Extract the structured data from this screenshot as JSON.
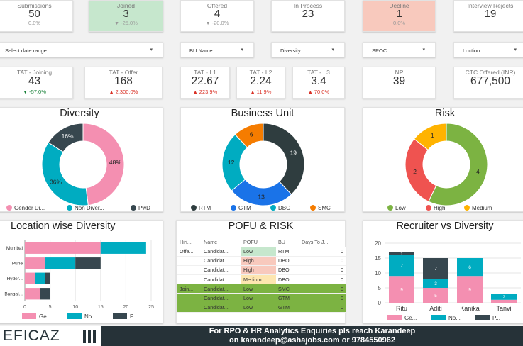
{
  "kpis_top": [
    {
      "label": "Submissions",
      "value": "50",
      "change": "0.0%",
      "trend": "none",
      "bg": "#ffffff"
    },
    {
      "label": "Joined",
      "value": "3",
      "change": "-25.0%",
      "trend": "down",
      "bg": "#c6e7cd"
    },
    {
      "label": "Offered",
      "value": "4",
      "change": "-20.0%",
      "trend": "down",
      "bg": "#ffffff"
    },
    {
      "label": "In Process",
      "value": "23",
      "change": "",
      "trend": "none",
      "bg": "#ffffff"
    },
    {
      "label": "Decline",
      "value": "1",
      "change": "0.0%",
      "trend": "none",
      "bg": "#f8c9bd"
    },
    {
      "label": "Interview Rejects",
      "value": "19",
      "change": "",
      "trend": "none",
      "bg": "#ffffff"
    }
  ],
  "filters": [
    {
      "label": "Select date range",
      "icon": "chevron-down-icon"
    },
    {
      "label": "BU Name",
      "icon": "chevron-down-icon"
    },
    {
      "label": "Diversity",
      "icon": "chevron-down-icon"
    },
    {
      "label": "SPOC",
      "icon": "chevron-down-icon"
    },
    {
      "label": "Loction",
      "icon": "chevron-down-icon"
    }
  ],
  "kpis_mid": [
    {
      "label": "TAT - Joining",
      "value": "43",
      "change": "-57.0%",
      "trend": "down-good"
    },
    {
      "label": "TAT - Offer",
      "value": "168",
      "change": "2,300.0%",
      "trend": "up-bad"
    },
    {
      "label": "TAT - L1",
      "value": "22.67",
      "change": "223.9%",
      "trend": "up-bad"
    },
    {
      "label": "TAT - L2",
      "value": "2.24",
      "change": "11.9%",
      "trend": "up-bad"
    },
    {
      "label": "TAT - L3",
      "value": "3.4",
      "change": "70.0%",
      "trend": "up-bad"
    },
    {
      "label": "NP",
      "value": "39",
      "change": "",
      "trend": "none"
    },
    {
      "label": "CTC Offered (INR)",
      "value": "677,500",
      "change": "",
      "trend": "none"
    }
  ],
  "colors": {
    "pink": "#f48fb1",
    "teal": "#00acc1",
    "dark": "#37474f",
    "blue": "#1a73e8",
    "orange": "#f57c00",
    "green": "#7cb342",
    "red": "#ef5350",
    "amber": "#ffb300",
    "dark_slate": "#2f3d3f",
    "footer": "#263238"
  },
  "chart_data": [
    {
      "type": "pie",
      "title": "Diversity",
      "categories": [
        "Gender Di...",
        "Non Diver...",
        "PwD"
      ],
      "values": [
        48,
        36,
        16
      ],
      "labels": [
        "48%",
        "36%",
        "16%"
      ],
      "colors": [
        "#f48fb1",
        "#00acc1",
        "#37474f"
      ],
      "legend": "bottom"
    },
    {
      "type": "pie",
      "title": "Business Unit",
      "categories": [
        "RTM",
        "GTM",
        "DBO",
        "SMC"
      ],
      "values": [
        19,
        13,
        12,
        6
      ],
      "labels": [
        "19",
        "13",
        "12",
        "6"
      ],
      "colors": [
        "#2f3d3f",
        "#1a73e8",
        "#00acc1",
        "#f57c00"
      ],
      "legend": "bottom"
    },
    {
      "type": "pie",
      "title": "Risk",
      "categories": [
        "Low",
        "High",
        "Medium"
      ],
      "values": [
        4,
        2,
        1
      ],
      "labels": [
        "4",
        "2",
        "1"
      ],
      "colors": [
        "#7cb342",
        "#ef5350",
        "#ffb300"
      ],
      "legend": "bottom"
    },
    {
      "type": "bar",
      "orientation": "horizontal",
      "stacked": true,
      "title": "Location wise Diversity",
      "categories": [
        "Mumbai",
        "Pune",
        "Hyder...",
        "Bangal..."
      ],
      "series": [
        {
          "name": "Ge...",
          "values": [
            15,
            4,
            2,
            3
          ],
          "color": "#f48fb1"
        },
        {
          "name": "No...",
          "values": [
            9,
            6,
            2,
            0
          ],
          "color": "#00acc1"
        },
        {
          "name": "P...",
          "values": [
            0,
            5,
            1,
            2
          ],
          "color": "#37474f"
        }
      ],
      "xlim": [
        0,
        25
      ],
      "xticks": [
        "0",
        "5",
        "10",
        "15",
        "20",
        "25"
      ],
      "legend": "bottom"
    },
    {
      "type": "bar",
      "stacked": true,
      "title": "Recruiter vs Diversity",
      "categories": [
        "Ritu",
        "Aditi",
        "Kanika",
        "Tanvi"
      ],
      "series": [
        {
          "name": "Ge...",
          "values": [
            9,
            5,
            9,
            1
          ],
          "color": "#f48fb1"
        },
        {
          "name": "No...",
          "values": [
            7,
            3,
            6,
            2
          ],
          "color": "#00acc1"
        },
        {
          "name": "P...",
          "values": [
            1,
            7,
            0,
            0
          ],
          "color": "#37474f"
        }
      ],
      "data_labels": [
        [
          "9",
          "7",
          "1"
        ],
        [
          "5",
          "3",
          "7"
        ],
        [
          "9",
          "6",
          ""
        ],
        [
          "",
          "2",
          ""
        ]
      ],
      "ylim": [
        0,
        20
      ],
      "yticks": [
        "0",
        "5",
        "10",
        "15",
        "20"
      ],
      "legend": "bottom"
    }
  ],
  "pofu": {
    "title": "POFU & RISK",
    "columns": [
      "Hiri...",
      "Name",
      "POFU",
      "BU",
      "Days To J..."
    ],
    "rows": [
      {
        "stage": "Offe...",
        "name": "Candidat...",
        "pofu": "Low",
        "bu": "RTM",
        "days": "0",
        "pofu_bg": "#c6e7cd",
        "row_bg": "#ffffff"
      },
      {
        "stage": "",
        "name": "Candidat...",
        "pofu": "High",
        "bu": "DBO",
        "days": "0",
        "pofu_bg": "#f8c9bd",
        "row_bg": "#ffffff"
      },
      {
        "stage": "",
        "name": "Candidat...",
        "pofu": "High",
        "bu": "DBO",
        "days": "0",
        "pofu_bg": "#f8c9bd",
        "row_bg": "#ffffff"
      },
      {
        "stage": "",
        "name": "Candidat...",
        "pofu": "Medium",
        "bu": "DBO",
        "days": "0",
        "pofu_bg": "#fde6b0",
        "row_bg": "#ffffff"
      },
      {
        "stage": "Join...",
        "name": "Candidat...",
        "pofu": "Low",
        "bu": "SMC",
        "days": "0",
        "pofu_bg": "#7cb342",
        "row_bg": "#7cb342"
      },
      {
        "stage": "",
        "name": "Candidat...",
        "pofu": "Low",
        "bu": "GTM",
        "days": "0",
        "pofu_bg": "#7cb342",
        "row_bg": "#7cb342"
      },
      {
        "stage": "",
        "name": "Candidat...",
        "pofu": "Low",
        "bu": "GTM",
        "days": "0",
        "pofu_bg": "#7cb342",
        "row_bg": "#7cb342"
      }
    ]
  },
  "footer": {
    "logo": "EFICAZ",
    "line1": "For RPO & HR Analytics Enquiries pls reach Karandeep",
    "line2": "on karandeep@ashajobs.com or 9784550962"
  }
}
